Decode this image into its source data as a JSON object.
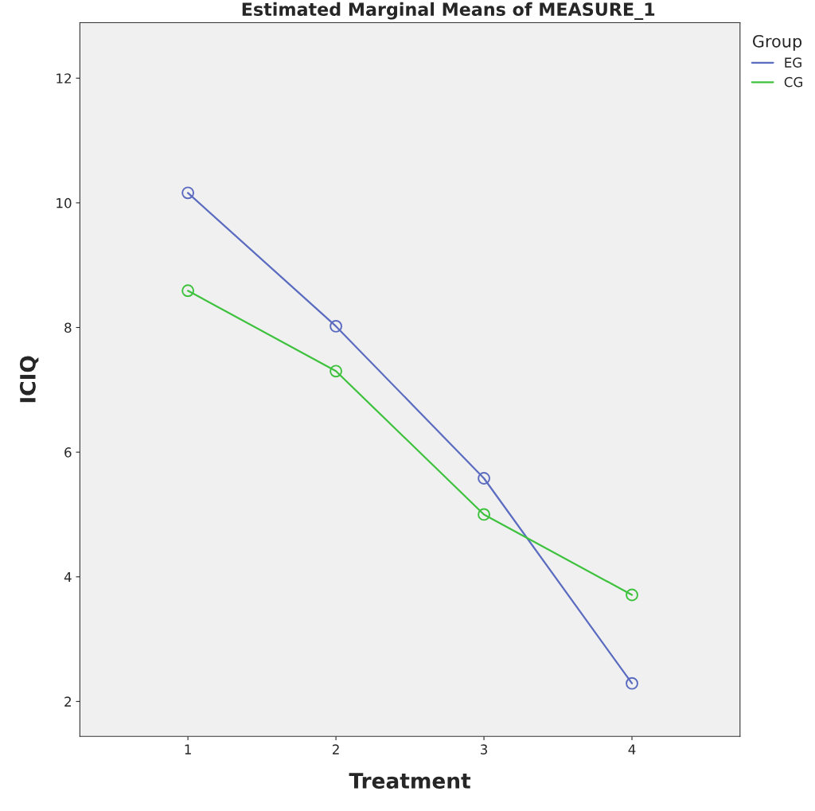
{
  "chart_data": {
    "type": "line",
    "title": "Estimated Marginal Means of MEASURE_1",
    "xlabel": "Treatment",
    "ylabel": "ICIQ",
    "legend_title": "Group",
    "x": [
      1,
      2,
      3,
      4
    ],
    "series": [
      {
        "name": "EG",
        "color": "#5b6cc0",
        "values": [
          10.16,
          8.02,
          5.58,
          2.29
        ]
      },
      {
        "name": "CG",
        "color": "#3ec23e",
        "values": [
          8.59,
          7.3,
          5.0,
          3.71
        ]
      }
    ],
    "xlim": [
      0.27,
      4.73
    ],
    "xticks": [
      1,
      2,
      3,
      4
    ],
    "ylim": [
      1.44,
      12.89
    ],
    "yticks": [
      2,
      4,
      6,
      8,
      10,
      12
    ],
    "marker": "circle",
    "line_style": "solid",
    "grid": false,
    "legend": "top right"
  }
}
